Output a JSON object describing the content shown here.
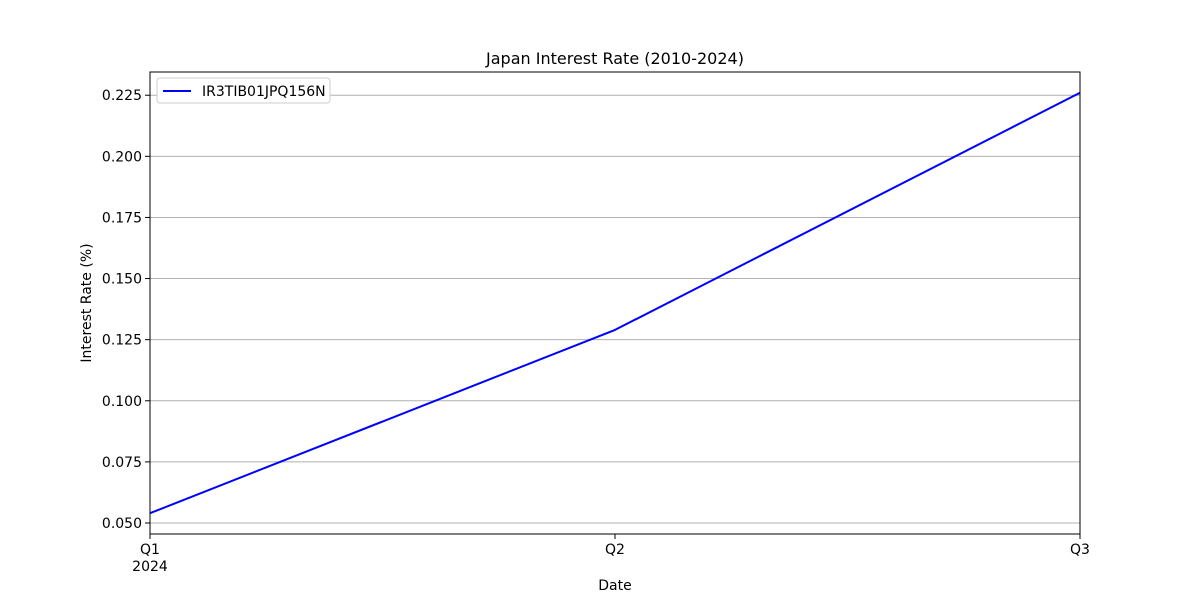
{
  "chart_data": {
    "type": "line",
    "title": "Japan Interest Rate (2010-2024)",
    "xlabel": "Date",
    "ylabel": "Interest Rate (%)",
    "x": [
      "2024-Q1",
      "2024-Q2",
      "2024-Q3"
    ],
    "x_tick_labels": [
      "Q1",
      "Q2",
      "Q3"
    ],
    "x_tick_year": "2024",
    "series": [
      {
        "name": "IR3TIB01JPQ156N",
        "values": [
          0.054,
          0.129,
          0.226
        ],
        "color": "#0000ff"
      }
    ],
    "ylim": [
      0.0455,
      0.2345
    ],
    "y_ticks": [
      0.05,
      0.075,
      0.1,
      0.125,
      0.15,
      0.175,
      0.2,
      0.225
    ],
    "y_tick_labels": [
      "0.050",
      "0.075",
      "0.100",
      "0.125",
      "0.150",
      "0.175",
      "0.200",
      "0.225"
    ],
    "grid": "y-only",
    "legend": "upper left"
  }
}
